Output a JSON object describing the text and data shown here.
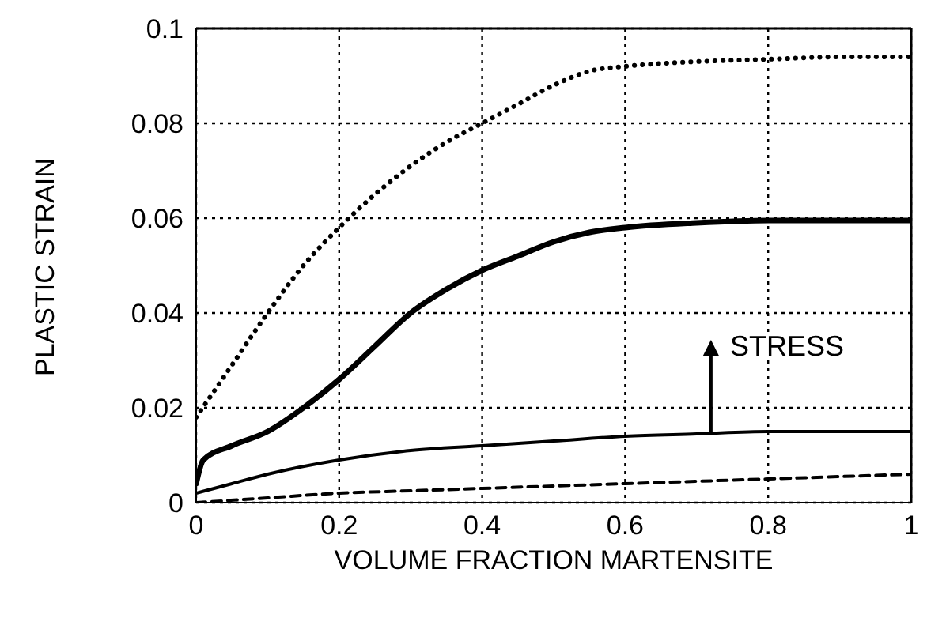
{
  "chart_data": {
    "type": "line",
    "xlabel": "VOLUME FRACTION MARTENSITE",
    "ylabel": "PLASTIC STRAIN",
    "xlim": [
      0,
      1
    ],
    "xticks": [
      0,
      0.2,
      0.4,
      0.6,
      0.8,
      1
    ],
    "ylim": [
      0,
      0.1
    ],
    "yticks": [
      0,
      0.02,
      0.04,
      0.06,
      0.08,
      0.1
    ],
    "grid": true,
    "marker": "none",
    "annotations": [
      {
        "text": "STRESS",
        "x": 0.72,
        "y": 0.015
      }
    ],
    "series": [
      {
        "color": "#000000",
        "line_style": "dotted",
        "x": [
          0,
          0.05,
          0.1,
          0.15,
          0.2,
          0.25,
          0.3,
          0.35,
          0.4,
          0.45,
          0.5,
          0.55,
          0.6,
          0.7,
          0.8,
          0.9,
          1
        ],
        "values": [
          0.018,
          0.029,
          0.04,
          0.05,
          0.058,
          0.065,
          0.071,
          0.076,
          0.08,
          0.084,
          0.088,
          0.091,
          0.092,
          0.093,
          0.0935,
          0.094,
          0.094
        ]
      },
      {
        "color": "#000000",
        "line_style": "solid",
        "x": [
          0,
          0.01,
          0.05,
          0.1,
          0.15,
          0.2,
          0.25,
          0.3,
          0.35,
          0.4,
          0.45,
          0.5,
          0.55,
          0.6,
          0.7,
          0.8,
          0.9,
          1
        ],
        "values": [
          0.004,
          0.009,
          0.012,
          0.015,
          0.02,
          0.026,
          0.033,
          0.04,
          0.045,
          0.049,
          0.052,
          0.055,
          0.057,
          0.058,
          0.059,
          0.0595,
          0.0595,
          0.0595
        ]
      },
      {
        "color": "#000000",
        "line_style": "solid",
        "x": [
          0,
          0.05,
          0.1,
          0.2,
          0.3,
          0.4,
          0.5,
          0.6,
          0.7,
          0.8,
          1
        ],
        "values": [
          0.002,
          0.004,
          0.006,
          0.009,
          0.011,
          0.012,
          0.013,
          0.014,
          0.0145,
          0.015,
          0.015
        ]
      },
      {
        "color": "#000000",
        "line_style": "dashed",
        "x": [
          0,
          0.1,
          0.2,
          0.3,
          0.4,
          0.5,
          0.6,
          0.8,
          1
        ],
        "values": [
          0,
          0.001,
          0.002,
          0.0025,
          0.003,
          0.0035,
          0.004,
          0.005,
          0.006
        ]
      }
    ]
  }
}
